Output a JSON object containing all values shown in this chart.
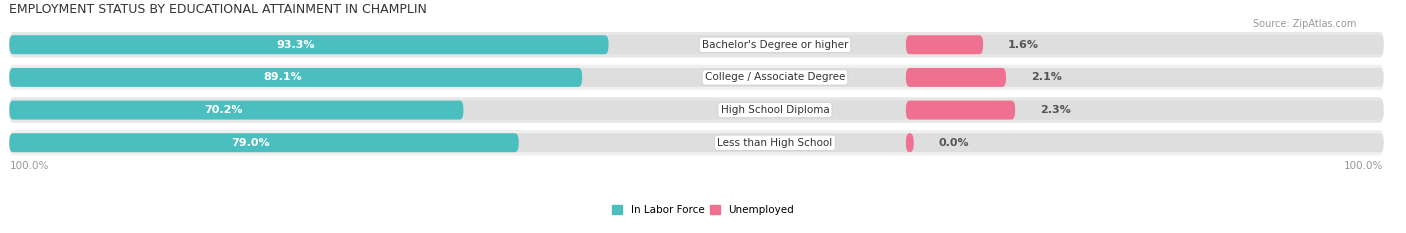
{
  "title": "EMPLOYMENT STATUS BY EDUCATIONAL ATTAINMENT IN CHAMPLIN",
  "source": "Source: ZipAtlas.com",
  "categories": [
    "Less than High School",
    "High School Diploma",
    "College / Associate Degree",
    "Bachelor's Degree or higher"
  ],
  "in_labor_force": [
    79.0,
    70.2,
    89.1,
    93.3
  ],
  "unemployed": [
    0.0,
    2.3,
    2.1,
    1.6
  ],
  "labor_color": "#4BBFBF",
  "unemployed_color": "#F07090",
  "bar_bg_color": "#DEDEDE",
  "row_bg_even": "#F0F0F0",
  "row_bg_odd": "#E6E6E6",
  "title_fontsize": 9,
  "source_fontsize": 7,
  "axis_label_fontsize": 7.5,
  "bar_label_fontsize": 8,
  "cat_label_fontsize": 7.5,
  "legend_fontsize": 7.5,
  "x_left_label": "100.0%",
  "x_right_label": "100.0%"
}
